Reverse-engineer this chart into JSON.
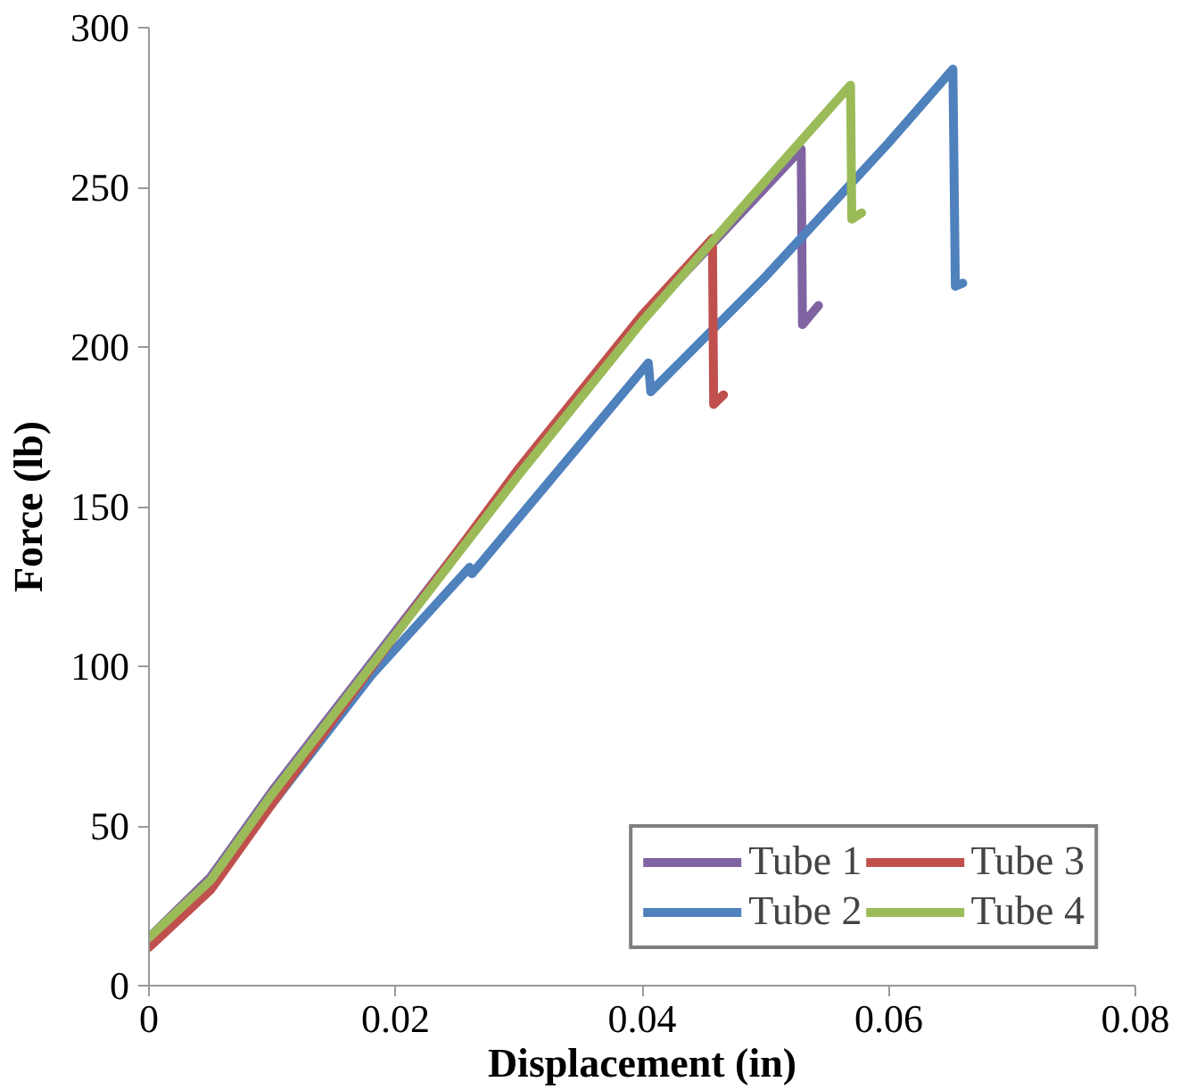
{
  "chart_data": {
    "type": "line",
    "xlabel": "Displacement (in)",
    "ylabel": "Force (lb)",
    "xlim": [
      0,
      0.08
    ],
    "ylim": [
      0,
      300
    ],
    "xticks": [
      0,
      0.02,
      0.04,
      0.06,
      0.08
    ],
    "yticks": [
      0,
      50,
      100,
      150,
      200,
      250,
      300
    ],
    "grid": false,
    "legend": "bottom right",
    "marker": "none",
    "line_style": "solid",
    "series": [
      {
        "name": "Tube 1",
        "color": "#8064a2",
        "x": [
          0,
          0.005,
          0.01,
          0.02,
          0.03,
          0.04,
          0.05,
          0.0529,
          0.053,
          0.0543
        ],
        "values": [
          15,
          34,
          61,
          111,
          161,
          209,
          250,
          262,
          207,
          213
        ]
      },
      {
        "name": "Tube 2",
        "color": "#4f81bd",
        "x": [
          0,
          0.005,
          0.01,
          0.018,
          0.026,
          0.0262,
          0.0405,
          0.0407,
          0.05,
          0.06,
          0.0652,
          0.0654,
          0.066
        ],
        "values": [
          14,
          32,
          57,
          97,
          131,
          129,
          195,
          186,
          222,
          264,
          287,
          219,
          220
        ]
      },
      {
        "name": "Tube 3",
        "color": "#c0504d",
        "x": [
          0,
          0.005,
          0.01,
          0.02,
          0.03,
          0.04,
          0.0457,
          0.0458,
          0.0466
        ],
        "values": [
          12,
          30,
          57,
          110,
          162,
          210,
          234,
          182,
          185
        ]
      },
      {
        "name": "Tube 4",
        "color": "#9bbb59",
        "x": [
          0,
          0.005,
          0.01,
          0.02,
          0.03,
          0.04,
          0.05,
          0.0569,
          0.057,
          0.0578
        ],
        "values": [
          15,
          33,
          60,
          110,
          160,
          208,
          252,
          282,
          240,
          242
        ]
      }
    ]
  }
}
